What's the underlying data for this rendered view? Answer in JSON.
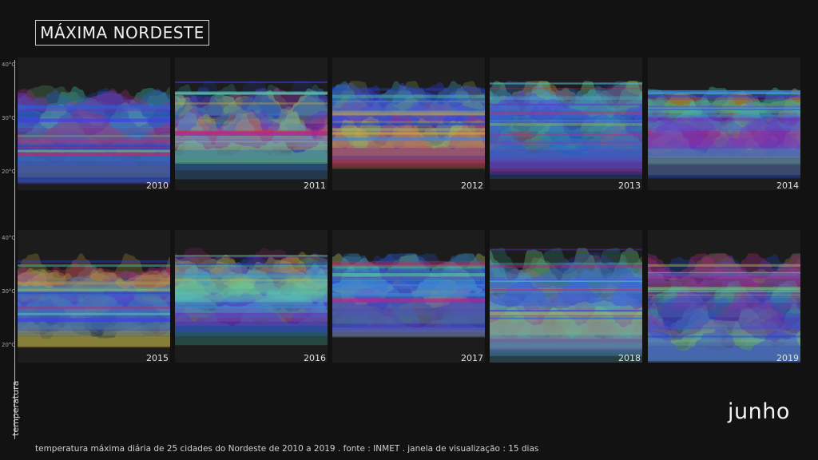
{
  "title": "MÁXIMA NORDESTE",
  "ylabel": "temperatura",
  "month": "junho",
  "footer": "temperatura máxima diária de 25 cidades do Nordeste de 2010 a 2019  .  fonte : INMET  .  janela de visualização : 15 dias",
  "colors": {
    "background": "#121212",
    "panel": "#1c1c1c",
    "palette": [
      "#2a5fd8",
      "#1f46b8",
      "#3d3df0",
      "#6a2fd0",
      "#b02a8a",
      "#d0245a",
      "#3fb0a0",
      "#6fd08a",
      "#a0c060",
      "#c8a83a",
      "#3a86d8",
      "#4fc0d0"
    ]
  },
  "chart_data": [
    {
      "type": "area",
      "year": "2010",
      "ylim": [
        20,
        40
      ],
      "yticks": [
        "40°C",
        "30°C",
        "20°C"
      ],
      "series_count": 25,
      "range": [
        22,
        37
      ]
    },
    {
      "type": "area",
      "year": "2011",
      "ylim": [
        20,
        40
      ],
      "series_count": 25,
      "range": [
        24,
        37
      ]
    },
    {
      "type": "area",
      "year": "2012",
      "ylim": [
        20,
        40
      ],
      "series_count": 25,
      "range": [
        25,
        37
      ]
    },
    {
      "type": "area",
      "year": "2013",
      "ylim": [
        20,
        40
      ],
      "series_count": 25,
      "range": [
        24,
        37
      ]
    },
    {
      "type": "area",
      "year": "2014",
      "ylim": [
        20,
        40
      ],
      "series_count": 25,
      "range": [
        24,
        36
      ]
    },
    {
      "type": "area",
      "year": "2015",
      "ylim": [
        20,
        40
      ],
      "yticks": [
        "40°C",
        "30°C",
        "20°C"
      ],
      "series_count": 25,
      "range": [
        22,
        37
      ]
    },
    {
      "type": "area",
      "year": "2016",
      "ylim": [
        20,
        40
      ],
      "series_count": 25,
      "range": [
        24,
        38
      ]
    },
    {
      "type": "area",
      "year": "2017",
      "ylim": [
        20,
        40
      ],
      "series_count": 25,
      "range": [
        24,
        37
      ]
    },
    {
      "type": "area",
      "year": "2018",
      "ylim": [
        20,
        40
      ],
      "series_count": 25,
      "range": [
        22,
        38
      ]
    },
    {
      "type": "area",
      "year": "2019",
      "ylim": [
        20,
        40
      ],
      "series_count": 25,
      "range": [
        20,
        37
      ]
    }
  ]
}
